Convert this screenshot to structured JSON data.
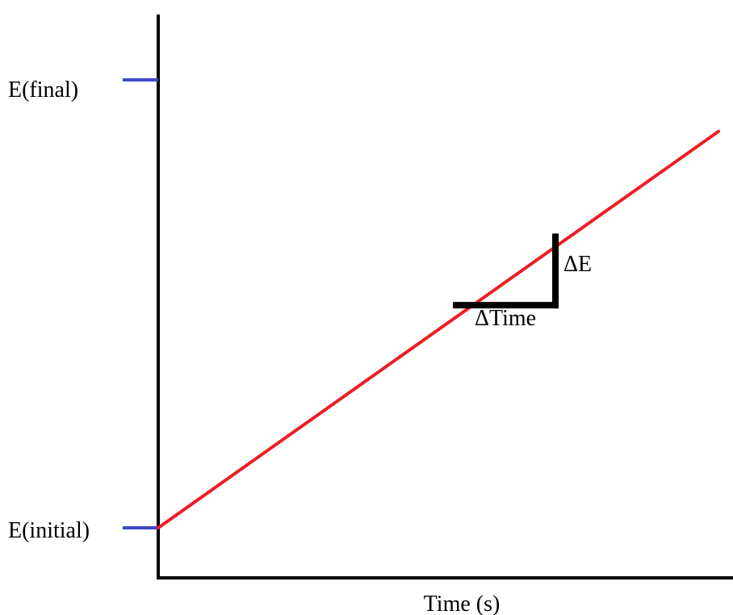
{
  "chart_data": {
    "type": "line",
    "xlabel": "Time (s)",
    "ylabel": "",
    "y_tick_labels": [
      "E(initial)",
      "E(final)"
    ],
    "series": [
      {
        "values": [
          {
            "x": 0,
            "y": 0
          },
          {
            "x": 1,
            "y": 0.885
          }
        ]
      }
    ],
    "slope_triangle": {
      "start": {
        "x": 0.526,
        "y": 0.497
      },
      "end": {
        "x": 0.709,
        "y": 0.657
      },
      "run_label": "ΔTime",
      "rise_label": "ΔE"
    },
    "xlim": [
      0,
      1
    ],
    "ylim": [
      0,
      1
    ],
    "grid": false,
    "colors": {
      "line": "#ee1c24",
      "tick_mark": "#3f48cc",
      "axis": "#000000",
      "triangle": "#000000"
    }
  }
}
